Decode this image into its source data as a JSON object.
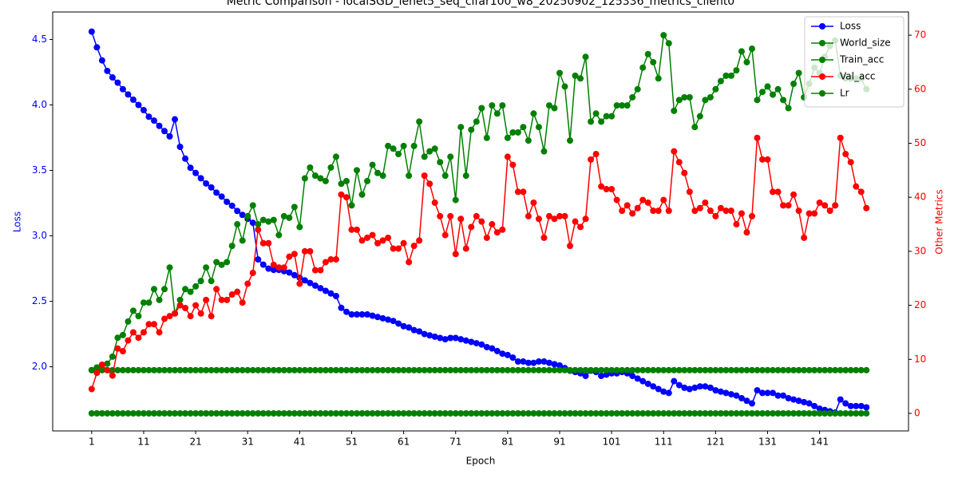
{
  "chart_data": {
    "type": "line",
    "title": "Metric Comparison - localSGD_lenet5_seq_cifar100_w8_20250902_125336_metrics_client0",
    "x_label": "Epoch",
    "y_label": "Loss",
    "y2_label": "Other Metrics",
    "x": [
      1,
      2,
      3,
      4,
      5,
      6,
      7,
      8,
      9,
      10,
      11,
      12,
      13,
      14,
      15,
      16,
      17,
      18,
      19,
      20,
      21,
      22,
      23,
      24,
      25,
      26,
      27,
      28,
      29,
      30,
      31,
      32,
      33,
      34,
      35,
      36,
      37,
      38,
      39,
      40,
      41,
      42,
      43,
      44,
      45,
      46,
      47,
      48,
      49,
      50,
      51,
      52,
      53,
      54,
      55,
      56,
      57,
      58,
      59,
      60,
      61,
      62,
      63,
      64,
      65,
      66,
      67,
      68,
      69,
      70,
      71,
      72,
      73,
      74,
      75,
      76,
      77,
      78,
      79,
      80,
      81,
      82,
      83,
      84,
      85,
      86,
      87,
      88,
      89,
      90,
      91,
      92,
      93,
      94,
      95,
      96,
      97,
      98,
      99,
      100,
      101,
      102,
      103,
      104,
      105,
      106,
      107,
      108,
      109,
      110,
      111,
      112,
      113,
      114,
      115,
      116,
      117,
      118,
      119,
      120,
      121,
      122,
      123,
      124,
      125,
      126,
      127,
      128,
      129,
      130,
      131,
      132,
      133,
      134,
      135,
      136,
      137,
      138,
      139,
      140,
      141,
      142,
      143,
      144,
      145,
      146,
      147,
      148,
      149,
      150
    ],
    "xlim": [
      -6.5,
      158.1
    ],
    "xticks": [
      1,
      11,
      21,
      31,
      41,
      51,
      61,
      71,
      81,
      91,
      101,
      111,
      121,
      131,
      141
    ],
    "ylim": [
      1.51,
      4.71
    ],
    "yticks": [
      {
        "value": 2.0,
        "label": "2.0"
      },
      {
        "value": 2.5,
        "label": "2.5"
      },
      {
        "value": 3.0,
        "label": "3.0"
      },
      {
        "value": 3.5,
        "label": "3.5"
      },
      {
        "value": 4.0,
        "label": "4.0"
      },
      {
        "value": 4.5,
        "label": "4.5"
      }
    ],
    "y2lim": [
      -3.25,
      74.3
    ],
    "y2ticks": [
      0,
      10,
      20,
      30,
      40,
      50,
      60,
      70
    ],
    "legend": "upper right",
    "grid": false,
    "series": [
      {
        "name": "Loss",
        "color": "#0000ff",
        "axis": "y",
        "values": [
          4.56,
          4.44,
          4.34,
          4.26,
          4.21,
          4.17,
          4.12,
          4.08,
          4.04,
          4.0,
          3.96,
          3.91,
          3.88,
          3.84,
          3.8,
          3.76,
          3.89,
          3.68,
          3.59,
          3.52,
          3.48,
          3.44,
          3.4,
          3.37,
          3.33,
          3.3,
          3.26,
          3.23,
          3.19,
          3.16,
          3.13,
          3.1,
          2.82,
          2.78,
          2.75,
          2.74,
          2.74,
          2.73,
          2.72,
          2.7,
          2.68,
          2.66,
          2.64,
          2.62,
          2.6,
          2.58,
          2.56,
          2.54,
          2.45,
          2.42,
          2.4,
          2.4,
          2.4,
          2.4,
          2.39,
          2.38,
          2.37,
          2.36,
          2.35,
          2.33,
          2.31,
          2.3,
          2.28,
          2.27,
          2.25,
          2.24,
          2.23,
          2.22,
          2.21,
          2.22,
          2.22,
          2.21,
          2.2,
          2.19,
          2.18,
          2.17,
          2.15,
          2.14,
          2.12,
          2.1,
          2.09,
          2.07,
          2.04,
          2.04,
          2.03,
          2.03,
          2.04,
          2.04,
          2.03,
          2.02,
          2.01,
          1.99,
          1.97,
          1.96,
          1.95,
          1.93,
          1.97,
          1.96,
          1.93,
          1.94,
          1.95,
          1.95,
          1.96,
          1.95,
          1.93,
          1.91,
          1.89,
          1.87,
          1.85,
          1.83,
          1.81,
          1.8,
          1.89,
          1.86,
          1.84,
          1.83,
          1.84,
          1.85,
          1.85,
          1.84,
          1.82,
          1.81,
          1.8,
          1.79,
          1.78,
          1.76,
          1.74,
          1.72,
          1.82,
          1.8,
          1.8,
          1.8,
          1.78,
          1.78,
          1.76,
          1.75,
          1.74,
          1.73,
          1.72,
          1.7,
          1.68,
          1.67,
          1.66,
          1.65,
          1.75,
          1.72,
          1.7,
          1.7,
          1.7,
          1.69
        ]
      },
      {
        "name": "World_size",
        "color": "#008000",
        "axis": "y2",
        "values": [
          8,
          8,
          8,
          8,
          8,
          8,
          8,
          8,
          8,
          8,
          8,
          8,
          8,
          8,
          8,
          8,
          8,
          8,
          8,
          8,
          8,
          8,
          8,
          8,
          8,
          8,
          8,
          8,
          8,
          8,
          8,
          8,
          8,
          8,
          8,
          8,
          8,
          8,
          8,
          8,
          8,
          8,
          8,
          8,
          8,
          8,
          8,
          8,
          8,
          8,
          8,
          8,
          8,
          8,
          8,
          8,
          8,
          8,
          8,
          8,
          8,
          8,
          8,
          8,
          8,
          8,
          8,
          8,
          8,
          8,
          8,
          8,
          8,
          8,
          8,
          8,
          8,
          8,
          8,
          8,
          8,
          8,
          8,
          8,
          8,
          8,
          8,
          8,
          8,
          8,
          8,
          8,
          8,
          8,
          8,
          8,
          8,
          8,
          8,
          8,
          8,
          8,
          8,
          8,
          8,
          8,
          8,
          8,
          8,
          8,
          8,
          8,
          8,
          8,
          8,
          8,
          8,
          8,
          8,
          8,
          8,
          8,
          8,
          8,
          8,
          8,
          8,
          8,
          8,
          8,
          8,
          8,
          8,
          8,
          8,
          8,
          8,
          8,
          8,
          8,
          8,
          8,
          8,
          8,
          8,
          8,
          8,
          8,
          8,
          8
        ]
      },
      {
        "name": "Train_acc",
        "color": "#008000",
        "axis": "y2",
        "values": [
          8,
          8.5,
          9,
          9.2,
          10.5,
          14,
          14.5,
          17,
          19,
          18,
          20.5,
          20.5,
          23,
          21,
          23,
          27,
          18.5,
          21,
          23,
          22.5,
          23.5,
          24.5,
          27,
          24.5,
          28,
          27.5,
          28,
          31,
          35,
          32,
          36.5,
          38.5,
          35,
          35.8,
          35.5,
          35.8,
          33,
          36.5,
          36.2,
          38.2,
          34.5,
          43.5,
          45.5,
          44,
          43.5,
          43,
          45.5,
          47.5,
          42.5,
          43,
          38.5,
          45,
          40.5,
          43,
          46,
          44.5,
          44,
          49.5,
          49,
          48,
          49.5,
          44,
          49.5,
          54,
          47.5,
          48.5,
          49,
          46.5,
          44,
          47.5,
          39.5,
          53,
          44,
          52.5,
          54,
          56.5,
          51,
          57,
          55.5,
          57,
          51,
          52,
          52,
          53,
          50.5,
          55.5,
          53,
          48.5,
          57,
          56.5,
          63,
          60.5,
          50.5,
          62.5,
          62,
          66,
          54,
          55.5,
          54,
          55,
          55,
          57,
          57,
          57,
          58.5,
          60,
          64,
          66.5,
          65,
          62,
          70,
          68.5,
          56,
          58,
          58.5,
          58.5,
          53,
          55,
          58,
          58.5,
          60,
          61.5,
          62.5,
          62.5,
          63.5,
          67,
          65,
          67.5,
          58,
          59.5,
          60.5,
          59,
          60,
          58,
          56.5,
          61,
          63,
          58.5,
          61,
          64,
          63,
          66,
          68,
          69,
          62.5,
          62,
          62,
          62,
          62,
          60
        ]
      },
      {
        "name": "Val_acc",
        "color": "#ff0000",
        "axis": "y2",
        "values": [
          4.5,
          7.5,
          9,
          8,
          7,
          12,
          11.5,
          13.5,
          15,
          14,
          15,
          16.5,
          16.5,
          15,
          17.5,
          18,
          18.5,
          20,
          19.5,
          18,
          20,
          18.5,
          21,
          18,
          23,
          21,
          21,
          22,
          22.5,
          20.5,
          24,
          26,
          34,
          31.5,
          31.5,
          27.5,
          27,
          27,
          29,
          29.5,
          24,
          30,
          30,
          26.5,
          26.5,
          28,
          28.5,
          28.5,
          40.5,
          40,
          34,
          34,
          32,
          32.5,
          33,
          31.5,
          32,
          32.5,
          30.5,
          30.5,
          31.5,
          28,
          31,
          32,
          44,
          42.5,
          39,
          36.5,
          33,
          36.5,
          29.5,
          36,
          30.5,
          34.5,
          36.5,
          35.5,
          32.5,
          35,
          33.5,
          34,
          47.5,
          46,
          41,
          41,
          36.5,
          39,
          36,
          32.5,
          36.5,
          36,
          36.5,
          36.5,
          31,
          35.5,
          34.5,
          36,
          47,
          48,
          42,
          41.5,
          41.5,
          39.5,
          37.5,
          38.5,
          37,
          38,
          39.5,
          39,
          37.5,
          37.5,
          39.5,
          37.5,
          48.5,
          46.5,
          44.5,
          41,
          37.5,
          38,
          39,
          37.5,
          36.5,
          38,
          37.5,
          37.5,
          35,
          37,
          33.5,
          36.5,
          51,
          47,
          47,
          41,
          41,
          38.5,
          38.5,
          40.5,
          37.5,
          32.5,
          37,
          37,
          39,
          38.5,
          37.5,
          38.5,
          51,
          48,
          46.5,
          42,
          41,
          38
        ]
      },
      {
        "name": "Lr",
        "color": "#008000",
        "axis": "y2",
        "values": [
          0,
          0,
          0,
          0,
          0,
          0,
          0,
          0,
          0,
          0,
          0,
          0,
          0,
          0,
          0,
          0,
          0,
          0,
          0,
          0,
          0,
          0,
          0,
          0,
          0,
          0,
          0,
          0,
          0,
          0,
          0,
          0,
          0,
          0,
          0,
          0,
          0,
          0,
          0,
          0,
          0,
          0,
          0,
          0,
          0,
          0,
          0,
          0,
          0,
          0,
          0,
          0,
          0,
          0,
          0,
          0,
          0,
          0,
          0,
          0,
          0,
          0,
          0,
          0,
          0,
          0,
          0,
          0,
          0,
          0,
          0,
          0,
          0,
          0,
          0,
          0,
          0,
          0,
          0,
          0,
          0,
          0,
          0,
          0,
          0,
          0,
          0,
          0,
          0,
          0,
          0,
          0,
          0,
          0,
          0,
          0,
          0,
          0,
          0,
          0,
          0,
          0,
          0,
          0,
          0,
          0,
          0,
          0,
          0,
          0,
          0,
          0,
          0,
          0,
          0,
          0,
          0,
          0,
          0,
          0,
          0,
          0,
          0,
          0,
          0,
          0,
          0,
          0,
          0,
          0,
          0,
          0,
          0,
          0,
          0,
          0,
          0,
          0,
          0,
          0,
          0,
          0,
          0,
          0,
          0,
          0,
          0,
          0,
          0,
          0
        ]
      }
    ]
  }
}
